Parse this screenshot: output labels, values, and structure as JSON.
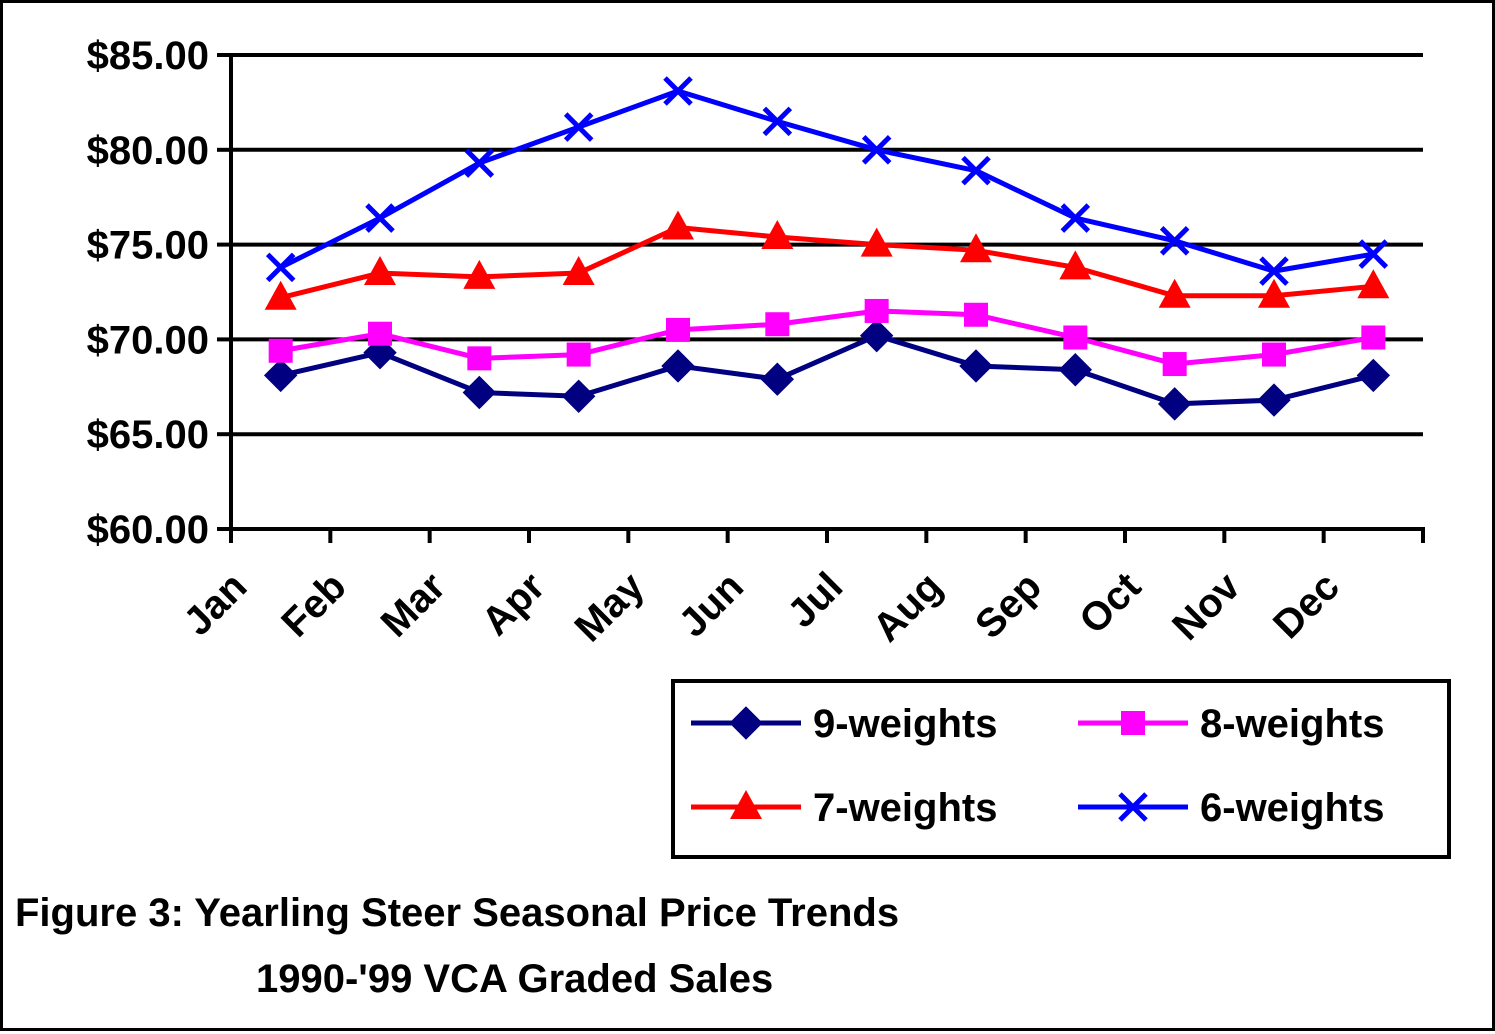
{
  "chart_data": {
    "type": "line",
    "categories": [
      "Jan",
      "Feb",
      "Mar",
      "Apr",
      "May",
      "Jun",
      "Jul",
      "Aug",
      "Sep",
      "Oct",
      "Nov",
      "Dec"
    ],
    "ylim": [
      60,
      85
    ],
    "yticks": [
      60,
      65,
      70,
      75,
      80,
      85
    ],
    "ytick_labels": [
      "$60.00",
      "$65.00",
      "$70.00",
      "$75.00",
      "$80.00",
      "$85.00"
    ],
    "grid": "horizontal",
    "legend_position": "bottom-right",
    "series": [
      {
        "name": "9-weights",
        "color": "#000080",
        "marker": "diamond",
        "values": [
          68.1,
          69.3,
          67.2,
          67.0,
          68.6,
          67.9,
          70.2,
          68.6,
          68.4,
          66.6,
          66.8,
          68.1
        ]
      },
      {
        "name": "8-weights",
        "color": "#FF00FF",
        "marker": "square",
        "values": [
          69.4,
          70.3,
          69.0,
          69.2,
          70.5,
          70.8,
          71.5,
          71.3,
          70.1,
          68.7,
          69.2,
          70.1
        ]
      },
      {
        "name": "7-weights",
        "color": "#FF0000",
        "marker": "triangle",
        "values": [
          72.2,
          73.5,
          73.3,
          73.5,
          75.9,
          75.4,
          75.0,
          74.7,
          73.8,
          72.3,
          72.3,
          72.8
        ]
      },
      {
        "name": "6-weights",
        "color": "#0000FF",
        "marker": "x",
        "values": [
          73.8,
          76.4,
          79.3,
          81.2,
          83.1,
          81.5,
          80.0,
          78.9,
          76.4,
          75.2,
          73.6,
          74.5
        ]
      }
    ]
  },
  "caption": {
    "line1": "Figure 3: Yearling Steer Seasonal Price Trends",
    "line2": "1990-'99 VCA Graded Sales"
  }
}
